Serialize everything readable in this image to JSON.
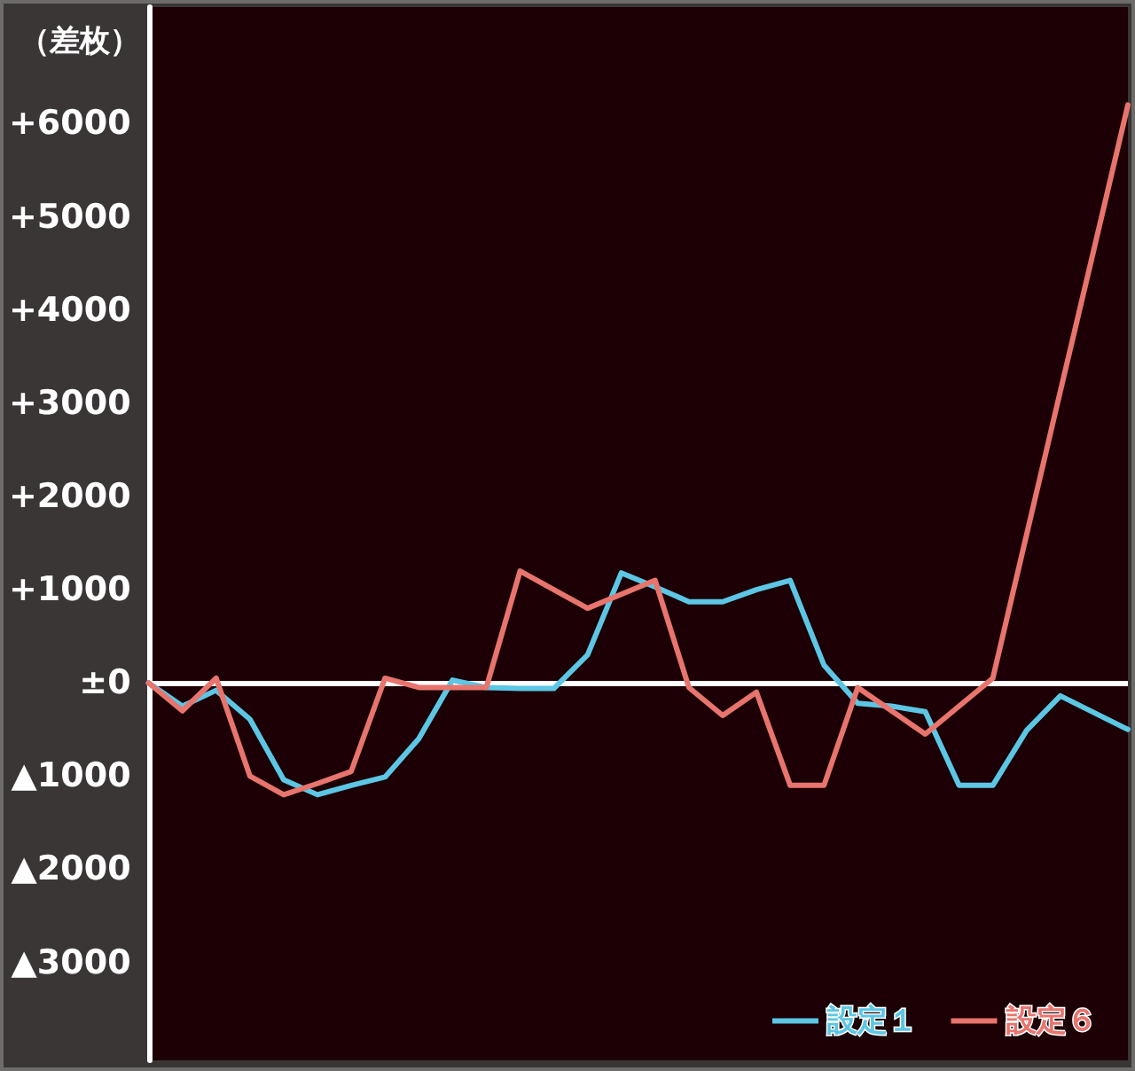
{
  "chart_data": {
    "type": "line",
    "ylabel": "（差枚）",
    "ylim": [
      -4050,
      7250
    ],
    "categories": [
      null,
      null,
      null,
      null,
      null,
      null,
      null,
      null,
      null,
      null,
      null,
      null,
      null,
      null,
      null,
      null,
      null,
      null,
      null,
      null,
      null,
      null,
      null,
      null,
      null,
      null,
      null,
      null,
      null,
      null
    ],
    "yticks": [
      {
        "value": 6000,
        "label": "+6000"
      },
      {
        "value": 5000,
        "label": "+5000"
      },
      {
        "value": 4000,
        "label": "+4000"
      },
      {
        "value": 3000,
        "label": "+3000"
      },
      {
        "value": 2000,
        "label": "+2000"
      },
      {
        "value": 1000,
        "label": "+1000"
      },
      {
        "value": 0,
        "label": "±0"
      },
      {
        "value": -1000,
        "label": "▲1000"
      },
      {
        "value": -2000,
        "label": "▲2000"
      },
      {
        "value": -3000,
        "label": "▲3000"
      }
    ],
    "tick_labels": "y",
    "grid": false,
    "legend": "bottom right",
    "marker": "none",
    "line_style": "solid",
    "ref_lines": [
      {
        "axis": "y",
        "value": 0,
        "color": "#ffffff"
      }
    ],
    "series": [
      {
        "name": "設定１",
        "color": "#5cc6e4",
        "values": [
          0,
          -250,
          -80,
          -390,
          -1040,
          -1200,
          -1100,
          -1010,
          -600,
          30,
          -50,
          -60,
          -60,
          300,
          1180,
          1030,
          870,
          870,
          1000,
          1100,
          190,
          -220,
          -250,
          -310,
          -1100,
          -1100,
          -510,
          -140,
          -320,
          -500
        ]
      },
      {
        "name": "設定６",
        "color": "#e8746e",
        "values": [
          0,
          -300,
          50,
          -1000,
          -1200,
          -1080,
          -950,
          50,
          -50,
          -50,
          -50,
          1200,
          1000,
          800,
          950,
          1100,
          -50,
          -350,
          -100,
          -1100,
          -1100,
          -50,
          -300,
          -550,
          -250,
          50,
          1590,
          3130,
          4660,
          6200
        ]
      }
    ]
  }
}
